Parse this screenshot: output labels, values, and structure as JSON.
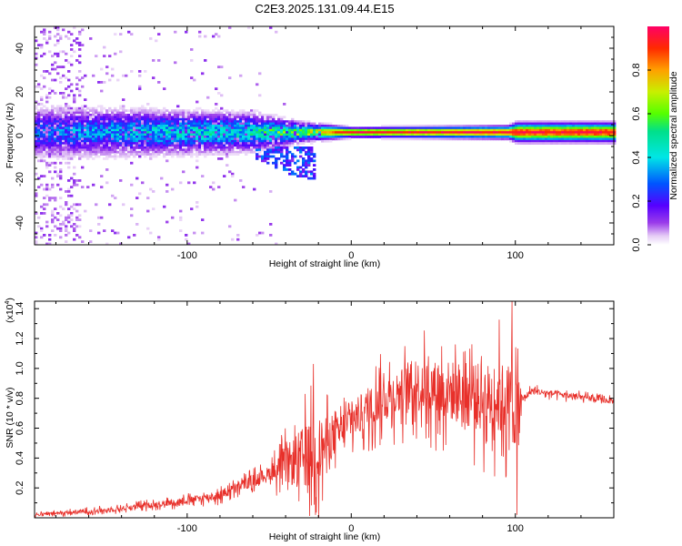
{
  "title": "C2E3.2025.131.09.44.E15",
  "colors": {
    "snr_line": "#e8302a",
    "frame": "#000000",
    "background": "#ffffff",
    "spectrogram_bg": "#ffffff"
  },
  "chart_data": [
    {
      "type": "heatmap",
      "name": "spectrogram",
      "xlabel": "Height of straight line (km)",
      "ylabel": "Frequency (Hz)",
      "xlim": [
        -193,
        160
      ],
      "ylim": [
        -50,
        50
      ],
      "xticks": [
        -100,
        0,
        100
      ],
      "xtick_labels": [
        "-100",
        "0",
        "100"
      ],
      "yticks": [
        -40,
        -20,
        0,
        20,
        40
      ],
      "ytick_labels": [
        "-40",
        "-20",
        "0",
        "20",
        "40"
      ],
      "colormap": "rainbow (magenta→red)",
      "colorbar": {
        "label": "Normalized spectral amplitude",
        "range": [
          0,
          1
        ],
        "ticks": [
          0.0,
          0.2,
          0.4,
          0.6,
          0.8
        ],
        "tick_labels": [
          "0.0",
          "0.2",
          "0.4",
          "0.6",
          "0.8"
        ]
      },
      "main_band": {
        "center_freq_hz": 2,
        "halfwidth_hz_profile": [
          {
            "x": -193,
            "w": 8
          },
          {
            "x": -120,
            "w": 7
          },
          {
            "x": -60,
            "w": 6
          },
          {
            "x": -30,
            "w": 3
          },
          {
            "x": 0,
            "w": 1.5
          },
          {
            "x": 95,
            "w": 2
          },
          {
            "x": 100,
            "w": 3
          },
          {
            "x": 160,
            "w": 3
          }
        ],
        "peak_amplitude_profile": [
          {
            "x": -193,
            "a": 0.3
          },
          {
            "x": -120,
            "a": 0.45
          },
          {
            "x": -60,
            "a": 0.5
          },
          {
            "x": -25,
            "a": 0.75
          },
          {
            "x": 0,
            "a": 1.0
          },
          {
            "x": 160,
            "a": 1.0
          }
        ]
      },
      "lower_feature": {
        "x_range": [
          -60,
          -22
        ],
        "freq_hz_range": [
          -20,
          -5
        ]
      },
      "scatter_region": {
        "x_range": [
          -193,
          -40
        ],
        "freq_hz_range": [
          -50,
          50
        ]
      }
    },
    {
      "type": "line",
      "name": "snr",
      "xlabel": "Height of straight line (km)",
      "ylabel": "SNR (10 * v/v)",
      "y_multiplier_label": "(x10",
      "y_multiplier_exp": "4",
      "xlim": [
        -193,
        160
      ],
      "ylim": [
        0,
        1.45
      ],
      "xticks": [
        -100,
        0,
        100
      ],
      "xtick_labels": [
        "-100",
        "0",
        "100"
      ],
      "yticks": [
        0.2,
        0.4,
        0.6,
        0.8,
        1.0,
        1.2,
        1.4
      ],
      "ytick_labels": [
        "0.2",
        "0.4",
        "0.6",
        "0.8",
        "1.0",
        "1.2",
        "1.4"
      ],
      "trend": [
        {
          "x": -193,
          "y": 0.02
        },
        {
          "x": -150,
          "y": 0.05
        },
        {
          "x": -110,
          "y": 0.1
        },
        {
          "x": -80,
          "y": 0.15
        },
        {
          "x": -60,
          "y": 0.25
        },
        {
          "x": -40,
          "y": 0.35
        },
        {
          "x": -30,
          "y": 0.4
        },
        {
          "x": -20,
          "y": 0.45
        },
        {
          "x": -10,
          "y": 0.55
        },
        {
          "x": 0,
          "y": 0.65
        },
        {
          "x": 20,
          "y": 0.8
        },
        {
          "x": 40,
          "y": 0.88
        },
        {
          "x": 60,
          "y": 0.85
        },
        {
          "x": 80,
          "y": 0.8
        },
        {
          "x": 90,
          "y": 0.8
        },
        {
          "x": 100,
          "y": 0.75
        },
        {
          "x": 110,
          "y": 0.85
        },
        {
          "x": 130,
          "y": 0.82
        },
        {
          "x": 160,
          "y": 0.78
        }
      ],
      "noise_amplitude": [
        {
          "x": -193,
          "a": 0.02
        },
        {
          "x": -100,
          "a": 0.05
        },
        {
          "x": -50,
          "a": 0.1
        },
        {
          "x": -30,
          "a": 0.45
        },
        {
          "x": -20,
          "a": 0.5
        },
        {
          "x": -10,
          "a": 0.25
        },
        {
          "x": 30,
          "a": 0.35
        },
        {
          "x": 60,
          "a": 0.45
        },
        {
          "x": 90,
          "a": 0.55
        },
        {
          "x": 102,
          "a": 0.65
        },
        {
          "x": 104,
          "a": 0.05
        },
        {
          "x": 160,
          "a": 0.04
        }
      ],
      "notable_peaks": [
        {
          "x": -23,
          "y": 1.03
        },
        {
          "x": 98,
          "y": 1.45
        },
        {
          "x": 101,
          "y": 1.42
        }
      ],
      "notable_dips": [
        {
          "x": 101,
          "y": 0.02
        }
      ]
    }
  ]
}
